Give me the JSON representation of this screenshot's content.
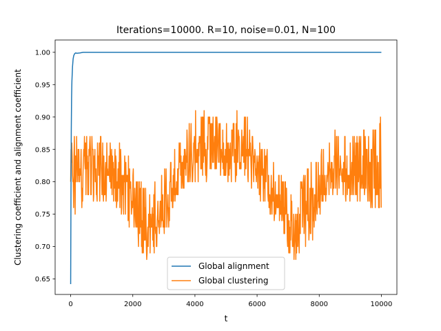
{
  "chart_data": {
    "type": "line",
    "title": "Iterations=10000. R=10, noise=0.01, N=100",
    "xlabel": "t",
    "ylabel": "Clustering coefficient and alignment coefficient",
    "xlim": [
      -500,
      10500
    ],
    "ylim": [
      0.626,
      1.019
    ],
    "xticks": [
      0,
      2000,
      4000,
      6000,
      8000,
      10000
    ],
    "xtick_labels": [
      "0",
      "2000",
      "4000",
      "6000",
      "8000",
      "10000"
    ],
    "yticks": [
      0.65,
      0.7,
      0.75,
      0.8,
      0.85,
      0.9,
      0.95,
      1.0
    ],
    "ytick_labels": [
      "0.65",
      "0.70",
      "0.75",
      "0.80",
      "0.85",
      "0.90",
      "0.95",
      "1.00"
    ],
    "grid": false,
    "legend_position": "lower-center",
    "series": [
      {
        "name": "Global alignment",
        "color": "#1f77b4",
        "x": [
          0,
          10,
          20,
          30,
          40,
          60,
          80,
          100,
          130,
          160,
          200,
          300,
          400,
          500,
          1000,
          2000,
          4000,
          6000,
          8000,
          10000
        ],
        "y": [
          0.642,
          0.78,
          0.88,
          0.93,
          0.955,
          0.978,
          0.99,
          0.995,
          0.998,
          0.999,
          0.9985,
          0.999,
          1.0,
          1.0,
          1.0,
          1.0,
          1.0,
          1.0,
          1.0,
          1.0
        ]
      },
      {
        "name": "Global clustering",
        "color": "#ff7f0e",
        "x": [
          0,
          500,
          1000,
          1500,
          1800,
          2000,
          2200,
          2500,
          2800,
          3100,
          3400,
          3700,
          4000,
          4300,
          4600,
          4900,
          5200,
          5500,
          5800,
          6000,
          6300,
          6600,
          6900,
          7200,
          7500,
          7800,
          8000,
          8200,
          8500,
          8800,
          9100,
          9400,
          9700,
          10000
        ],
        "y": [
          0.815,
          0.83,
          0.82,
          0.81,
          0.8,
          0.765,
          0.74,
          0.725,
          0.745,
          0.775,
          0.8,
          0.83,
          0.845,
          0.85,
          0.845,
          0.845,
          0.84,
          0.85,
          0.84,
          0.83,
          0.8,
          0.775,
          0.74,
          0.725,
          0.745,
          0.765,
          0.78,
          0.8,
          0.82,
          0.81,
          0.82,
          0.815,
          0.82,
          0.8
        ],
        "band_min": [
          0.74,
          0.77,
          0.77,
          0.76,
          0.74,
          0.71,
          0.69,
          0.68,
          0.7,
          0.72,
          0.77,
          0.79,
          0.8,
          0.8,
          0.8,
          0.8,
          0.8,
          0.8,
          0.79,
          0.78,
          0.75,
          0.73,
          0.7,
          0.67,
          0.7,
          0.71,
          0.74,
          0.77,
          0.78,
          0.77,
          0.77,
          0.77,
          0.76,
          0.76
        ],
        "band_max": [
          0.87,
          0.88,
          0.87,
          0.86,
          0.85,
          0.82,
          0.8,
          0.79,
          0.8,
          0.83,
          0.86,
          0.89,
          0.91,
          0.91,
          0.9,
          0.89,
          0.89,
          0.93,
          0.88,
          0.87,
          0.85,
          0.83,
          0.8,
          0.78,
          0.81,
          0.83,
          0.84,
          0.87,
          0.88,
          0.87,
          0.87,
          0.88,
          0.89,
          0.9
        ]
      }
    ]
  }
}
